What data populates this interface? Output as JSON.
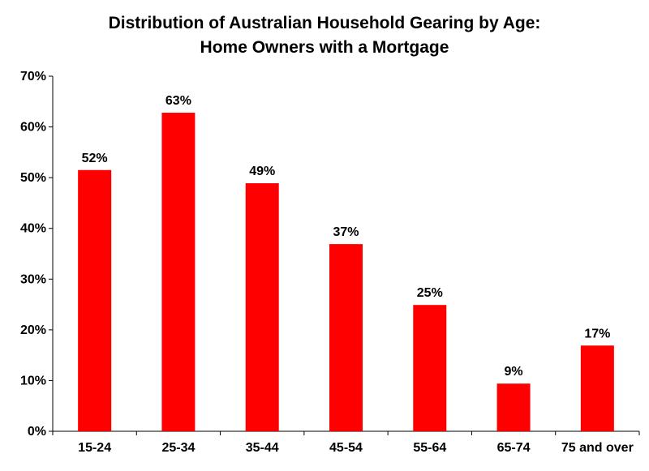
{
  "chart_data": {
    "type": "bar",
    "title_line1": "Distribution of Australian Household Gearing by Age:",
    "title_line2": "Home Owners with a Mortgage",
    "categories": [
      "15-24",
      "25-34",
      "35-44",
      "45-54",
      "55-64",
      "65-74",
      "75 and over"
    ],
    "values": [
      51.5,
      62.8,
      48.9,
      36.9,
      24.9,
      9.4,
      16.9
    ],
    "data_labels": [
      "52%",
      "63%",
      "49%",
      "37%",
      "25%",
      "9%",
      "17%"
    ],
    "yticks": [
      "0%",
      "10%",
      "20%",
      "30%",
      "40%",
      "50%",
      "60%",
      "70%"
    ],
    "ytick_values": [
      0,
      10,
      20,
      30,
      40,
      50,
      60,
      70
    ],
    "ylim": [
      0,
      70
    ],
    "bar_color": "#ff0000",
    "grid": false,
    "legend": "none"
  }
}
